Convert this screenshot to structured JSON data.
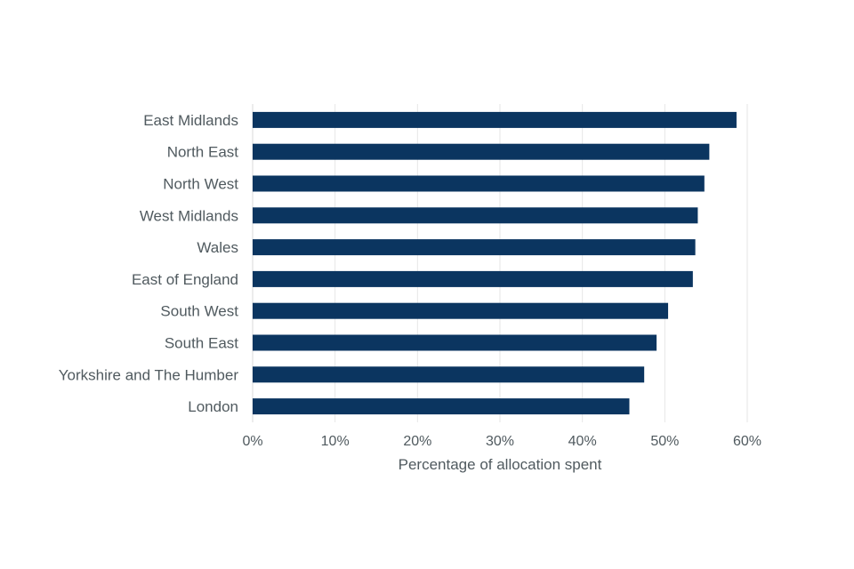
{
  "chart_data": {
    "type": "bar",
    "orientation": "horizontal",
    "categories": [
      "East Midlands",
      "North East",
      "North West",
      "West Midlands",
      "Wales",
      "East of England",
      "South West",
      "South East",
      "Yorkshire and The Humber",
      "London"
    ],
    "values": [
      58.7,
      55.4,
      54.8,
      54.0,
      53.7,
      53.4,
      50.4,
      49.0,
      47.5,
      45.7
    ],
    "title": "",
    "xlabel": "Percentage of allocation spent",
    "ylabel": "",
    "xlim": [
      0,
      60
    ],
    "x_ticks": [
      "0%",
      "10%",
      "20%",
      "30%",
      "40%",
      "50%",
      "60%"
    ],
    "grid": true,
    "legend": "none",
    "bar_color": "#0b3560"
  }
}
